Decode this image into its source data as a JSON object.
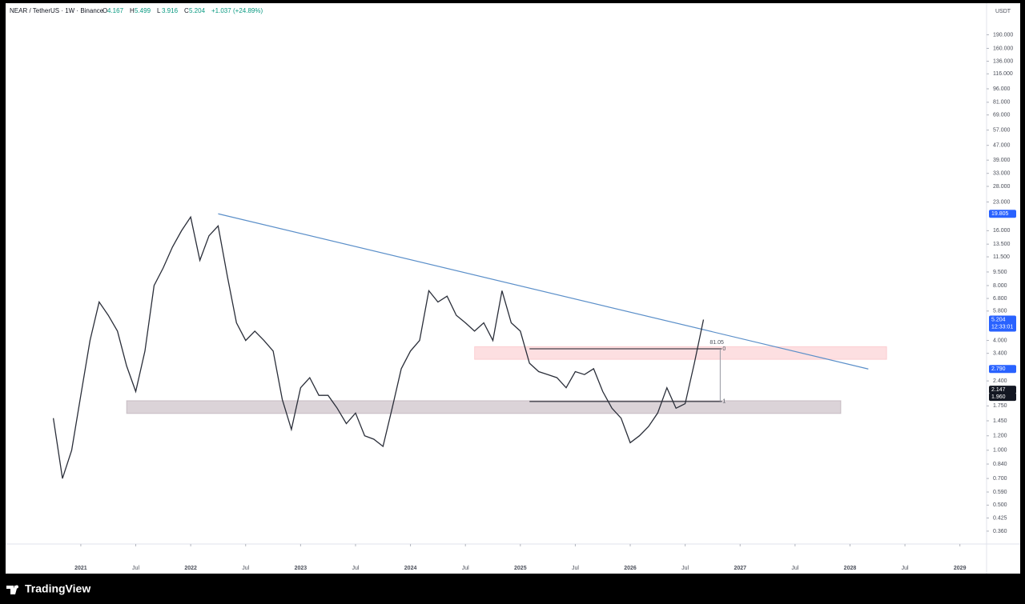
{
  "chart_data": {
    "type": "line",
    "symbol": "NEAR / TetherUS · 1W · Binance",
    "ohlc": [
      {
        "letter": "O",
        "value": 4.167
      },
      {
        "letter": "H",
        "value": 5.499
      },
      {
        "letter": "L",
        "value": 3.916
      },
      {
        "letter": "C",
        "value": 5.204
      }
    ],
    "change": {
      "value": 1.037,
      "label": "+1.037"
    },
    "change_pct": {
      "value": 24.89,
      "label": "(+24.89%)"
    },
    "currency": "USDT",
    "brand": "TradingView",
    "log_scale": true,
    "color": "#2a2e39",
    "x": [
      "2020-10",
      "2020-11",
      "2020-12",
      "2021-01",
      "2021-02",
      "2021-03",
      "2021-04",
      "2021-05",
      "2021-06",
      "2021-07",
      "2021-08",
      "2021-09",
      "2021-10",
      "2021-11",
      "2021-12",
      "2022-01",
      "2022-02",
      "2022-03",
      "2022-04",
      "2022-05",
      "2022-06",
      "2022-07",
      "2022-08",
      "2022-09",
      "2022-10",
      "2022-11",
      "2022-12",
      "2023-01",
      "2023-02",
      "2023-03",
      "2023-04",
      "2023-05",
      "2023-06",
      "2023-07",
      "2023-08",
      "2023-09",
      "2023-10",
      "2023-11",
      "2023-12",
      "2024-01",
      "2024-02",
      "2024-03",
      "2024-04",
      "2024-05",
      "2024-06",
      "2024-07",
      "2024-08",
      "2024-09",
      "2024-10",
      "2024-11",
      "2024-12",
      "2025-01",
      "2025-02",
      "2025-03",
      "2025-04",
      "2025-05",
      "2025-06",
      "2025-07",
      "2025-08",
      "2025-09",
      "2025-10",
      "2025-11",
      "2025-12",
      "2026-01",
      "2026-02",
      "2026-03",
      "2026-04",
      "2026-05",
      "2026-06",
      "2026-07",
      "2026-08",
      "2026-09"
    ],
    "values": [
      1.5,
      0.7,
      1.0,
      2.0,
      4.0,
      6.5,
      5.5,
      4.5,
      2.9,
      2.1,
      3.5,
      8.0,
      10,
      13,
      16,
      19,
      11,
      15,
      17,
      9,
      5,
      4.0,
      4.5,
      4.0,
      3.5,
      1.9,
      1.3,
      2.2,
      2.5,
      2.0,
      2.0,
      1.7,
      1.4,
      1.6,
      1.2,
      1.15,
      1.05,
      1.7,
      2.8,
      3.5,
      4.0,
      7.5,
      6.5,
      7.0,
      5.5,
      5.0,
      4.5,
      5.0,
      4.0,
      7.5,
      5.0,
      4.5,
      3.0,
      2.7,
      2.6,
      2.5,
      2.2,
      2.7,
      2.6,
      2.8,
      2.1,
      1.7,
      1.5,
      1.1,
      1.2,
      1.35,
      1.6,
      2.2,
      1.7,
      1.8,
      3.0,
      5.204
    ],
    "xlim": [
      "2020-04",
      "2029-04"
    ],
    "xticks": [
      {
        "value": "2021-01",
        "label": "2021"
      },
      {
        "value": "2021-07",
        "label": "Jul"
      },
      {
        "value": "2022-01",
        "label": "2022"
      },
      {
        "value": "2022-07",
        "label": "Jul"
      },
      {
        "value": "2023-01",
        "label": "2023"
      },
      {
        "value": "2023-07",
        "label": "Jul"
      },
      {
        "value": "2024-01",
        "label": "2024"
      },
      {
        "value": "2024-07",
        "label": "Jul"
      },
      {
        "value": "2025-01",
        "label": "2025"
      },
      {
        "value": "2025-07",
        "label": "Jul"
      },
      {
        "value": "2026-01",
        "label": "2026"
      },
      {
        "value": "2026-07",
        "label": "Jul"
      },
      {
        "value": "2027-01",
        "label": "2027"
      },
      {
        "value": "2027-07",
        "label": "Jul"
      },
      {
        "value": "2028-01",
        "label": "2028"
      },
      {
        "value": "2028-07",
        "label": "Jul"
      },
      {
        "value": "2029-01",
        "label": "2029"
      }
    ],
    "ylim": [
      0.306,
      283
    ],
    "yticks": [
      {
        "value": 190,
        "label": "190.000"
      },
      {
        "value": 160,
        "label": "160.000"
      },
      {
        "value": 136,
        "label": "136.000"
      },
      {
        "value": 116,
        "label": "116.000"
      },
      {
        "value": 96,
        "label": "96.000"
      },
      {
        "value": 81,
        "label": "81.000"
      },
      {
        "value": 69,
        "label": "69.000"
      },
      {
        "value": 57,
        "label": "57.000"
      },
      {
        "value": 47,
        "label": "47.000"
      },
      {
        "value": 39,
        "label": "39.000"
      },
      {
        "value": 33,
        "label": "33.000"
      },
      {
        "value": 28,
        "label": "28.000"
      },
      {
        "value": 23,
        "label": "23.000"
      },
      {
        "value": 16,
        "label": "16.000"
      },
      {
        "value": 13.5,
        "label": "13.500"
      },
      {
        "value": 11.5,
        "label": "11.500"
      },
      {
        "value": 9.5,
        "label": "9.500"
      },
      {
        "value": 8,
        "label": "8.000"
      },
      {
        "value": 6.8,
        "label": "6.800"
      },
      {
        "value": 5.8,
        "label": "5.800"
      },
      {
        "value": 4,
        "label": "4.000"
      },
      {
        "value": 3.4,
        "label": "3.400"
      },
      {
        "value": 2.4,
        "label": "2.400"
      },
      {
        "value": 1.75,
        "label": "1.750"
      },
      {
        "value": 1.45,
        "label": "1.450"
      },
      {
        "value": 1.2,
        "label": "1.200"
      },
      {
        "value": 1,
        "label": "1.000"
      },
      {
        "value": 0.84,
        "label": "0.840"
      },
      {
        "value": 0.7,
        "label": "0.700"
      },
      {
        "value": 0.59,
        "label": "0.590"
      },
      {
        "value": 0.5,
        "label": "0.500"
      },
      {
        "value": 0.425,
        "label": "0.425"
      },
      {
        "value": 0.36,
        "label": "0.360"
      }
    ],
    "price_tags": [
      {
        "value": 19.805,
        "label": "19.805",
        "color": "#2962ff"
      },
      {
        "value": 5.204,
        "label": "5.204",
        "color": "#2962ff",
        "countdown": "12:33:01"
      },
      {
        "value": 2.79,
        "label": "2.790",
        "color": "#2962ff"
      },
      {
        "value": 2.147,
        "label": "2.147",
        "color": "#131722"
      },
      {
        "value": 1.96,
        "label": "1.960",
        "color": "#131722"
      }
    ],
    "trendline": {
      "x": [
        "2022-04",
        "2028-03"
      ],
      "values": [
        19.805,
        2.79
      ],
      "color": "#5b8fc9"
    },
    "zones": [
      {
        "x": [
          "2024-08",
          "2028-05"
        ],
        "values": [
          3.15,
          3.7
        ],
        "color": "rgba(242,54,69,0.16)"
      },
      {
        "x": [
          "2021-06",
          "2027-12"
        ],
        "values": [
          1.59,
          1.87
        ],
        "color": "rgba(110,80,100,0.25)"
      }
    ],
    "range_box": {
      "x": [
        "2025-02",
        "2026-11"
      ],
      "values": [
        1.85,
        3.6
      ],
      "pct": {
        "value": 81.05,
        "label": "81.05%"
      },
      "levels": [
        0,
        1
      ]
    }
  }
}
